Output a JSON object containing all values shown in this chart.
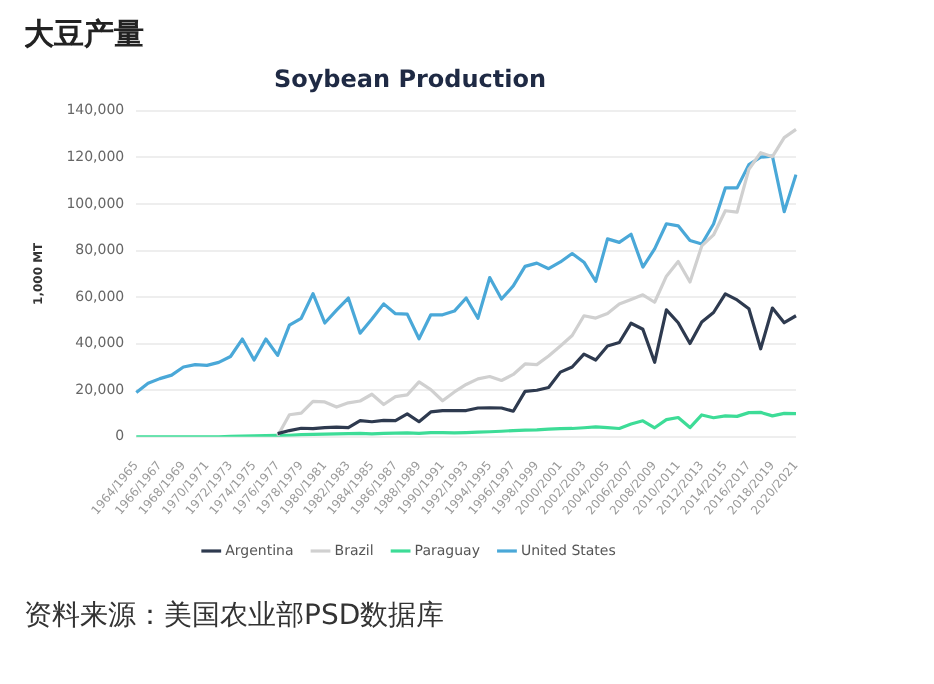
{
  "chart_data": {
    "type": "line",
    "title": "大豆产量",
    "subtitle": "Soybean Production",
    "ylabel": "1,000 MT",
    "categories": [
      "1964/1965",
      null,
      "1966/1967",
      null,
      "1968/1969",
      null,
      "1970/1971",
      null,
      "1972/1973",
      null,
      "1974/1975",
      null,
      "1976/1977",
      null,
      "1978/1979",
      null,
      "1980/1981",
      null,
      "1982/1983",
      null,
      "1984/1985",
      null,
      "1986/1987",
      null,
      "1988/1989",
      null,
      "1990/1991",
      null,
      "1992/1993",
      null,
      "1994/1995",
      null,
      "1996/1997",
      null,
      "1998/1999",
      null,
      "2000/2001",
      null,
      "2002/2003",
      null,
      "2004/2005",
      null,
      "2006/2007",
      null,
      "2008/2009",
      null,
      "2010/2011",
      null,
      "2012/2013",
      null,
      "2014/2015",
      null,
      "2016/2017",
      null,
      "2018/2019",
      null,
      "2020/2021"
    ],
    "series": [
      {
        "name": "Argentina",
        "color": "#2e3a4f",
        "values": [
          null,
          null,
          null,
          null,
          null,
          null,
          null,
          null,
          null,
          null,
          null,
          null,
          1400,
          2700,
          3700,
          3500,
          4000,
          4150,
          4000,
          7000,
          6500,
          7100,
          7000,
          9900,
          6500,
          10700,
          11300,
          11300,
          11300,
          12400,
          12500,
          12400,
          11000,
          19500,
          20000,
          21200,
          27800,
          30000,
          35500,
          33000,
          39000,
          40500,
          48800,
          46200,
          32000,
          54500,
          49000,
          40100,
          49300,
          53400,
          61400,
          58800,
          55000,
          37800,
          55300,
          49000,
          52000
        ]
      },
      {
        "name": "Brazil",
        "color": "#d0d0d0",
        "values": [
          null,
          null,
          null,
          null,
          null,
          null,
          null,
          null,
          null,
          null,
          null,
          null,
          500,
          9500,
          10200,
          15200,
          15000,
          12800,
          14600,
          15400,
          18300,
          13900,
          17300,
          18000,
          23600,
          20300,
          15500,
          19300,
          22500,
          24900,
          25900,
          24200,
          26800,
          31300,
          31000,
          34700,
          39000,
          43500,
          52000,
          51000,
          53000,
          57000,
          59000,
          61000,
          57800,
          69000,
          75300,
          66500,
          82000,
          86700,
          97100,
          96500,
          114900,
          122000,
          120300,
          128500,
          132000
        ]
      },
      {
        "name": "Paraguay",
        "color": "#3ddc97",
        "values": [
          0,
          0,
          0,
          0,
          0,
          0,
          0,
          0,
          200,
          300,
          400,
          500,
          600,
          700,
          1000,
          1100,
          1200,
          1300,
          1400,
          1500,
          1300,
          1500,
          1600,
          1700,
          1500,
          1800,
          1800,
          1700,
          1800,
          2000,
          2200,
          2400,
          2700,
          2900,
          3000,
          3300,
          3500,
          3600,
          3900,
          4300,
          4000,
          3600,
          5500,
          6900,
          3900,
          7400,
          8300,
          4000,
          9400,
          8200,
          9000,
          8800,
          10400,
          10500,
          9000,
          10100,
          10000
        ]
      },
      {
        "name": "United States",
        "color": "#4aa8d8",
        "values": [
          19000,
          23000,
          25000,
          26500,
          30000,
          31000,
          30700,
          32000,
          34500,
          42000,
          33000,
          42000,
          35000,
          48000,
          50900,
          61500,
          48900,
          54400,
          59600,
          44500,
          50600,
          57100,
          52900,
          52700,
          42100,
          52400,
          52400,
          54000,
          59600,
          50900,
          68400,
          59200,
          64800,
          73200,
          74600,
          72200,
          75100,
          78700,
          75000,
          66800,
          85000,
          83500,
          87000,
          72900,
          80700,
          91500,
          90600,
          84300,
          82800,
          91400,
          106900,
          106900,
          116900,
          120100,
          120500,
          96700,
          112600
        ]
      }
    ],
    "ylim": [
      0,
      140000
    ],
    "yticks": [
      {
        "value": 0,
        "label": "0"
      },
      {
        "value": 20000,
        "label": "20,000"
      },
      {
        "value": 40000,
        "label": "40,000"
      },
      {
        "value": 60000,
        "label": "60,000"
      },
      {
        "value": 80000,
        "label": "80,000"
      },
      {
        "value": 100000,
        "label": "100,000"
      },
      {
        "value": 120000,
        "label": "120,000"
      },
      {
        "value": 140000,
        "label": "140,000"
      }
    ],
    "grid": "y",
    "legend": "bottom",
    "marker": "none",
    "line_style": "solid",
    "annotations": [
      "资料来源：美国农业部PSD数据库"
    ]
  }
}
